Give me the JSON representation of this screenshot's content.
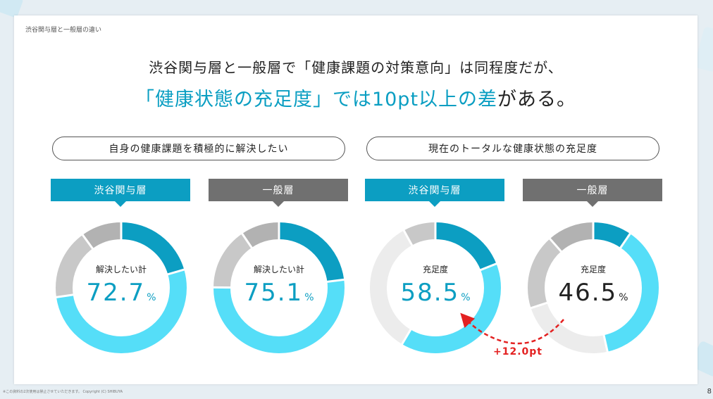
{
  "breadcrumb": "渋谷関与層と一般層の違い",
  "headline": {
    "line1": "渋谷関与層と一般層で「健康課題の対策意向」は同程度だが、",
    "line2_highlight": "「健康状態の充足度」では10pt以上の差",
    "line2_rest": "がある。"
  },
  "sections": [
    {
      "title": "自身の健康課題を積極的に解決したい"
    },
    {
      "title": "現在のトータルな健康状態の充足度"
    }
  ],
  "tags": {
    "shibuya": "渋谷関与層",
    "general": "一般層"
  },
  "donuts": [
    {
      "label": "解決したい計",
      "value": "72.7",
      "unit": "%",
      "segments": [
        20.5,
        52.2,
        17.3,
        10.0
      ]
    },
    {
      "label": "解決したい計",
      "value": "75.1",
      "unit": "%",
      "segments": [
        23.0,
        52.1,
        15.4,
        9.5
      ]
    },
    {
      "label": "充足度",
      "value": "58.5",
      "unit": "%",
      "segments": [
        19.0,
        39.5,
        33.5,
        8.0
      ]
    },
    {
      "label": "充足度",
      "value": "46.5",
      "unit": "%",
      "segments": [
        9.5,
        37.0,
        23.5,
        18.5,
        11.5
      ]
    }
  ],
  "difference": "+12.0pt",
  "footer": "※この資料の2次使用は禁止させていただきます。 Copyright (C) SHIBUYA",
  "page_number": "8",
  "colors": {
    "dark_blue": "#0c9ec2",
    "light_blue": "#55def8",
    "light_gray": "#c8c8c8",
    "lighter_gray": "#ececec",
    "mid_gray": "#b2b2b2",
    "red": "#e32121"
  }
}
